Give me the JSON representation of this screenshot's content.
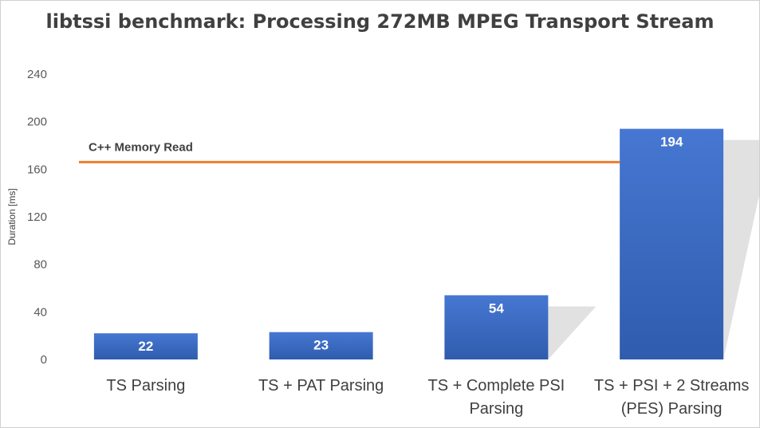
{
  "chart_data": {
    "type": "bar",
    "title": "libtssi benchmark: Processing 272MB MPEG Transport Stream",
    "xlabel": "",
    "ylabel": "Duration [ms]",
    "ylim": [
      0,
      240
    ],
    "yticks": [
      0,
      40,
      80,
      120,
      160,
      200,
      240
    ],
    "categories": [
      [
        "TS Parsing"
      ],
      [
        "TS + PAT Parsing"
      ],
      [
        "TS + Complete PSI",
        "Parsing"
      ],
      [
        "TS + PSI + 2 Streams",
        "(PES) Parsing"
      ]
    ],
    "values": [
      22,
      23,
      54,
      194
    ],
    "bar_color": "#3f6fc8",
    "reference_line": {
      "label": "C++ Memory Read",
      "value": 166,
      "color": "#ed7d31"
    },
    "grid": false,
    "legend": "none"
  }
}
